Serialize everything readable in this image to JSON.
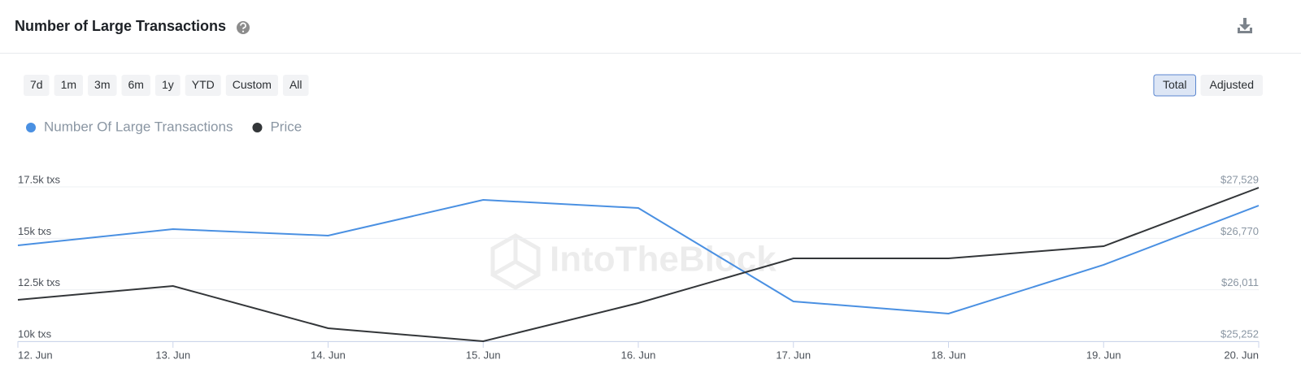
{
  "header": {
    "title": "Number of Large Transactions"
  },
  "controls": {
    "ranges": [
      "7d",
      "1m",
      "3m",
      "6m",
      "1y",
      "YTD",
      "Custom",
      "All"
    ],
    "modes": [
      "Total",
      "Adjusted"
    ],
    "selected_mode": "Total"
  },
  "watermark": "IntoTheBlock",
  "chart_data": {
    "type": "line",
    "categories": [
      "12. Jun",
      "13. Jun",
      "14. Jun",
      "15. Jun",
      "16. Jun",
      "17. Jun",
      "18. Jun",
      "19. Jun",
      "20. Jun"
    ],
    "series": [
      {
        "name": "Number Of Large Transactions",
        "color": "#4a90e2",
        "values": [
          14658,
          15447,
          15132,
          16868,
          16474,
          11934,
          11342,
          13711,
          16592
        ]
      },
      {
        "name": "Price",
        "color": "#333639",
        "axis": "y2",
        "values": [
          25863,
          26067,
          25444,
          25252,
          25815,
          26474,
          26474,
          26654,
          27517
        ]
      }
    ],
    "ylim": [
      10000,
      17500
    ],
    "yticks": [
      {
        "value": 10000,
        "label": "10k txs"
      },
      {
        "value": 12500,
        "label": "12.5k txs"
      },
      {
        "value": 15000,
        "label": "15k txs"
      },
      {
        "value": 17500,
        "label": "17.5k txs"
      }
    ],
    "y2lim": [
      25252,
      27529
    ],
    "y2ticks": [
      {
        "value": 25252,
        "label": "$25,252"
      },
      {
        "value": 26011,
        "label": "$26,011"
      },
      {
        "value": 26770,
        "label": "$26,770"
      },
      {
        "value": 27529,
        "label": "$27,529"
      }
    ],
    "grid": true
  }
}
